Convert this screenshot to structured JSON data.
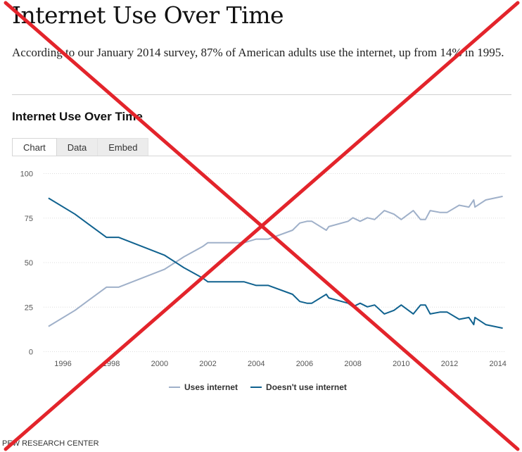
{
  "page": {
    "title": "Internet Use Over Time",
    "description": "According to our January 2014 survey, 87% of American adults use the internet, up from 14% in 1995.",
    "chart_heading": "Internet Use Over Time",
    "source": "PEW RESEARCH CENTER",
    "overlay": "red-x-cross-out",
    "overlay_color": "#e3242b"
  },
  "tabs": [
    {
      "label": "Chart",
      "active": true
    },
    {
      "label": "Data",
      "active": false
    },
    {
      "label": "Embed",
      "active": false
    }
  ],
  "chart_data": {
    "type": "line",
    "title": "",
    "xlabel": "",
    "ylabel": "",
    "xlim": [
      1995.2,
      2014.3
    ],
    "ylim": [
      0,
      100
    ],
    "yticks": [
      0,
      25,
      50,
      75,
      100
    ],
    "xticks": [
      1996,
      1998,
      2000,
      2002,
      2004,
      2006,
      2008,
      2010,
      2012,
      2014
    ],
    "grid": true,
    "legend_position": "bottom",
    "series": [
      {
        "name": "Uses internet",
        "color": "#9fb0c9",
        "points": [
          [
            1995.4,
            14
          ],
          [
            1996.5,
            23
          ],
          [
            1997.8,
            36
          ],
          [
            1998.3,
            36
          ],
          [
            2000.2,
            46
          ],
          [
            2001.0,
            53
          ],
          [
            2001.8,
            59
          ],
          [
            2002.0,
            61
          ],
          [
            2003.5,
            61
          ],
          [
            2004.0,
            63
          ],
          [
            2004.5,
            63
          ],
          [
            2005.5,
            68
          ],
          [
            2005.8,
            72
          ],
          [
            2006.1,
            73
          ],
          [
            2006.3,
            73
          ],
          [
            2006.9,
            68
          ],
          [
            2007.0,
            70
          ],
          [
            2007.8,
            73
          ],
          [
            2008.0,
            75
          ],
          [
            2008.3,
            73
          ],
          [
            2008.6,
            75
          ],
          [
            2008.9,
            74
          ],
          [
            2009.3,
            79
          ],
          [
            2009.7,
            77
          ],
          [
            2010.0,
            74
          ],
          [
            2010.5,
            79
          ],
          [
            2010.8,
            74
          ],
          [
            2011.0,
            74
          ],
          [
            2011.2,
            79
          ],
          [
            2011.6,
            78
          ],
          [
            2011.9,
            78
          ],
          [
            2012.4,
            82
          ],
          [
            2012.8,
            81
          ],
          [
            2013.0,
            85
          ],
          [
            2013.05,
            81
          ],
          [
            2013.5,
            85
          ],
          [
            2014.2,
            87
          ]
        ]
      },
      {
        "name": "Doesn't use internet",
        "color": "#10628f",
        "points": [
          [
            1995.4,
            86
          ],
          [
            1996.5,
            77
          ],
          [
            1997.8,
            64
          ],
          [
            1998.3,
            64
          ],
          [
            2000.2,
            54
          ],
          [
            2001.0,
            47
          ],
          [
            2001.8,
            41
          ],
          [
            2002.0,
            39
          ],
          [
            2003.5,
            39
          ],
          [
            2004.0,
            37
          ],
          [
            2004.5,
            37
          ],
          [
            2005.5,
            32
          ],
          [
            2005.8,
            28
          ],
          [
            2006.1,
            27
          ],
          [
            2006.3,
            27
          ],
          [
            2006.9,
            32
          ],
          [
            2007.0,
            30
          ],
          [
            2007.8,
            27
          ],
          [
            2008.0,
            25
          ],
          [
            2008.3,
            27
          ],
          [
            2008.6,
            25
          ],
          [
            2008.9,
            26
          ],
          [
            2009.3,
            21
          ],
          [
            2009.7,
            23
          ],
          [
            2010.0,
            26
          ],
          [
            2010.5,
            21
          ],
          [
            2010.8,
            26
          ],
          [
            2011.0,
            26
          ],
          [
            2011.2,
            21
          ],
          [
            2011.6,
            22
          ],
          [
            2011.9,
            22
          ],
          [
            2012.4,
            18
          ],
          [
            2012.8,
            19
          ],
          [
            2013.0,
            15
          ],
          [
            2013.05,
            19
          ],
          [
            2013.5,
            15
          ],
          [
            2014.2,
            13
          ]
        ]
      }
    ]
  }
}
